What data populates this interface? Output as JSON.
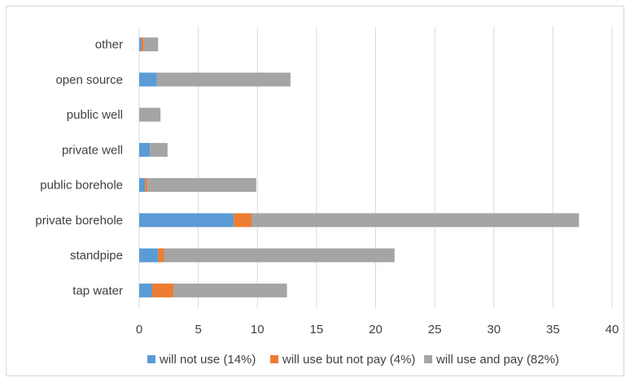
{
  "chart_data": {
    "type": "bar",
    "orientation": "horizontal",
    "stacked": true,
    "categories": [
      "tap water",
      "standpipe",
      "private borehole",
      "public borehole",
      "private well",
      "public well",
      "open source",
      "other"
    ],
    "series": [
      {
        "name": "will not use (14%)",
        "color": "#5b9bd5",
        "values": [
          1.1,
          1.6,
          8.0,
          0.5,
          0.9,
          0.0,
          1.5,
          0.2
        ]
      },
      {
        "name": "will use but not pay (4%)",
        "color": "#ed7d31",
        "values": [
          1.8,
          0.5,
          1.5,
          0.2,
          0.0,
          0.0,
          0.0,
          0.2
        ]
      },
      {
        "name": "will use and pay (82%)",
        "color": "#a5a5a5",
        "values": [
          9.6,
          19.5,
          27.7,
          9.2,
          1.5,
          1.8,
          11.3,
          1.2
        ]
      }
    ],
    "xlim": [
      0,
      40
    ],
    "xticks": [
      0,
      5,
      10,
      15,
      20,
      25,
      30,
      35,
      40
    ],
    "grid": true,
    "legend_position": "bottom",
    "title": "",
    "xlabel": "",
    "ylabel": ""
  }
}
